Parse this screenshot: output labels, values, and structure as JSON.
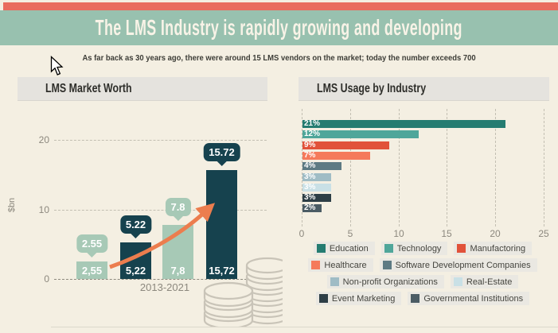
{
  "page": {
    "title": "The LMS Industry is rapidly growing and developing",
    "subtitle": "As far back as 30 years ago, there were around 15 LMS vendors on the market; today the number exceeds 700"
  },
  "colors": {
    "top_strip": "#e96c5e",
    "banner": "#98c1af",
    "background": "#f4efe2",
    "panel_header": "#e5e3de",
    "light_bar": "#a7c9b6",
    "dark_bar": "#16424e",
    "arrow": "#ec7d4e",
    "coin_outline": "#c9c4b8"
  },
  "left_chart": {
    "title": "LMS Market Worth",
    "ylabel": "$bn",
    "xlabel": "2013-2021",
    "yticks": [
      "20",
      "10",
      "0"
    ],
    "bars": [
      {
        "bubble": "2.55",
        "inside_label": "2,55",
        "value": 2.55,
        "tone": "light"
      },
      {
        "bubble": "5.22",
        "inside_label": "5,22",
        "value": 5.22,
        "tone": "dark"
      },
      {
        "bubble": "7.8",
        "inside_label": "7,8",
        "value": 7.8,
        "tone": "light"
      },
      {
        "bubble": "15.72",
        "inside_label": "15,72",
        "value": 15.72,
        "tone": "dark"
      }
    ]
  },
  "right_chart": {
    "title": "LMS Usage by Industry",
    "xticks": [
      "0",
      "5",
      "10",
      "15",
      "20",
      "25"
    ],
    "bars": [
      {
        "label": "21%",
        "value": 21,
        "industry": "Education",
        "color": "#257c71"
      },
      {
        "label": "12%",
        "value": 12,
        "industry": "Technology",
        "color": "#4fa69a"
      },
      {
        "label": "9%",
        "value": 9,
        "industry": "Manufactoring",
        "color": "#e1523a"
      },
      {
        "label": "7%",
        "value": 7,
        "industry": "Healthcare",
        "color": "#f57a5b"
      },
      {
        "label": "4%",
        "value": 4,
        "industry": "Software Development Companies",
        "color": "#5d7a83"
      },
      {
        "label": "3%",
        "value": 3,
        "industry": "Non-profit Organizations",
        "color": "#9fbcc5"
      },
      {
        "label": "3%",
        "value": 3,
        "industry": "Real-Estate",
        "color": "#c9e0e6"
      },
      {
        "label": "3%",
        "value": 3,
        "industry": "Event Marketing",
        "color": "#2d3e46"
      },
      {
        "label": "2%",
        "value": 2,
        "industry": "Governmental Institutions",
        "color": "#4b5c64"
      }
    ]
  },
  "chart_data": [
    {
      "type": "bar",
      "title": "LMS Market Worth",
      "xlabel": "2013-2021",
      "ylabel": "$bn",
      "categories": [
        "",
        "",
        "",
        ""
      ],
      "values": [
        2.55,
        5.22,
        7.8,
        15.72
      ],
      "bar_inside_labels": [
        "2,55",
        "5,22",
        "7,8",
        "15,72"
      ],
      "bubble_labels": [
        "2.55",
        "5.22",
        "7.8",
        "15.72"
      ],
      "ylim": [
        0,
        22
      ],
      "yticks": [
        0,
        10,
        20
      ],
      "grid": "horizontal-dashed",
      "annotations": [
        "orange growth arrow rising from first bar to top of last bar",
        "gray outline coin stacks at lower right"
      ]
    },
    {
      "type": "bar",
      "orientation": "horizontal",
      "title": "LMS Usage by Industry",
      "categories": [
        "Education",
        "Technology",
        "Manufactoring",
        "Healthcare",
        "Software Development Companies",
        "Non-profit Organizations",
        "Real-Estate",
        "Event Marketing",
        "Governmental Institutions"
      ],
      "values": [
        21,
        12,
        9,
        7,
        4,
        3,
        3,
        3,
        2
      ],
      "data_labels": [
        "21%",
        "12%",
        "9%",
        "7%",
        "4%",
        "3%",
        "3%",
        "3%",
        "2%"
      ],
      "xlim": [
        0,
        25
      ],
      "xticks": [
        0,
        5,
        10,
        15,
        20,
        25
      ],
      "grid": "vertical-dashed",
      "legend_position": "bottom"
    }
  ]
}
